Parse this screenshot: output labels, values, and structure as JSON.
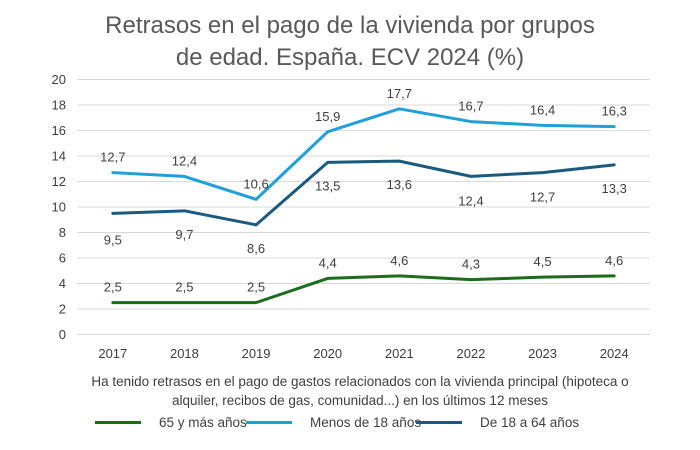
{
  "colors": {
    "series_65": "#1a6e1a",
    "series_minus18": "#20a0d8",
    "series_18_64": "#1b5a80",
    "grid": "#d9d9d9",
    "text": "#404040",
    "title": "#595959"
  },
  "chart_data": {
    "type": "line",
    "title_line1": "Retrasos en el pago de la vivienda por grupos",
    "title_line2": "de edad. España. ECV 2024  (%)",
    "caption_line1": "Ha tenido retrasos en el pago de gastos relacionados con la vivienda principal (hipoteca o",
    "caption_line2": "alquiler, recibos de gas, comunidad...) en los últimos 12 meses",
    "categories": [
      "2017",
      "2018",
      "2019",
      "2020",
      "2021",
      "2022",
      "2023",
      "2024"
    ],
    "yticks": [
      "0",
      "2",
      "4",
      "6",
      "8",
      "10",
      "12",
      "14",
      "16",
      "18",
      "20"
    ],
    "ylim": [
      0,
      20
    ],
    "grid": true,
    "legend_position": "bottom",
    "series": [
      {
        "name": "65 y más años",
        "values": [
          2.5,
          2.5,
          2.5,
          4.4,
          4.6,
          4.3,
          4.5,
          4.6
        ],
        "labels": [
          "2,5",
          "2,5",
          "2,5",
          "4,4",
          "4,6",
          "4,3",
          "4,5",
          "4,6"
        ]
      },
      {
        "name": "Menos de 18 años",
        "values": [
          12.7,
          12.4,
          10.6,
          15.9,
          17.7,
          16.7,
          16.4,
          16.3
        ],
        "labels": [
          "12,7",
          "12,4",
          "10,6",
          "15,9",
          "17,7",
          "16,7",
          "16,4",
          "16,3"
        ]
      },
      {
        "name": "De 18 a 64 años",
        "values": [
          9.5,
          9.7,
          8.6,
          13.5,
          13.6,
          12.4,
          12.7,
          13.3
        ],
        "labels": [
          "9,5",
          "9,7",
          "8,6",
          "13,5",
          "13,6",
          "12,4",
          "12,7",
          "13,3"
        ]
      }
    ]
  }
}
